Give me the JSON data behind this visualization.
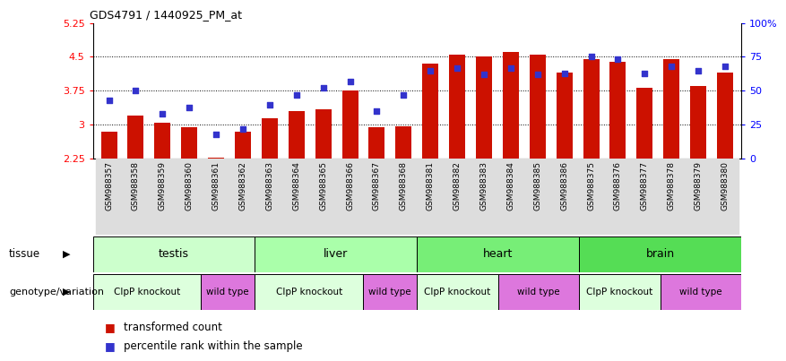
{
  "title": "GDS4791 / 1440925_PM_at",
  "samples": [
    "GSM988357",
    "GSM988358",
    "GSM988359",
    "GSM988360",
    "GSM988361",
    "GSM988362",
    "GSM988363",
    "GSM988364",
    "GSM988365",
    "GSM988366",
    "GSM988367",
    "GSM988368",
    "GSM988381",
    "GSM988382",
    "GSM988383",
    "GSM988384",
    "GSM988385",
    "GSM988386",
    "GSM988375",
    "GSM988376",
    "GSM988377",
    "GSM988378",
    "GSM988379",
    "GSM988380"
  ],
  "bar_values": [
    2.85,
    3.2,
    3.05,
    2.95,
    2.28,
    2.85,
    3.15,
    3.3,
    3.35,
    3.75,
    2.95,
    2.97,
    4.35,
    4.55,
    4.5,
    4.6,
    4.55,
    4.15,
    4.45,
    4.4,
    3.82,
    4.45,
    3.85,
    4.15
  ],
  "dot_values": [
    43,
    50,
    33,
    38,
    18,
    22,
    40,
    47,
    52,
    57,
    35,
    47,
    65,
    67,
    62,
    67,
    62,
    63,
    75,
    73,
    63,
    68,
    65,
    68
  ],
  "bar_color": "#cc1100",
  "dot_color": "#3333cc",
  "ylim_left": [
    2.25,
    5.25
  ],
  "ylim_right": [
    0,
    100
  ],
  "yticks_left": [
    2.25,
    3.0,
    3.75,
    4.5,
    5.25
  ],
  "yticks_right": [
    0,
    25,
    50,
    75,
    100
  ],
  "ytick_labels_left": [
    "2.25",
    "3",
    "3.75",
    "4.5",
    "5.25"
  ],
  "ytick_labels_right": [
    "0",
    "25",
    "50",
    "75",
    "100%"
  ],
  "grid_values": [
    3.0,
    3.75,
    4.5
  ],
  "tissues": [
    {
      "label": "testis",
      "start": 0,
      "end": 6,
      "color": "#ccffcc"
    },
    {
      "label": "liver",
      "start": 6,
      "end": 12,
      "color": "#aaffaa"
    },
    {
      "label": "heart",
      "start": 12,
      "end": 18,
      "color": "#77ee77"
    },
    {
      "label": "brain",
      "start": 18,
      "end": 24,
      "color": "#55dd55"
    }
  ],
  "genotypes": [
    {
      "label": "ClpP knockout",
      "start": 0,
      "end": 4,
      "color": "#ddffdd"
    },
    {
      "label": "wild type",
      "start": 4,
      "end": 6,
      "color": "#dd77dd"
    },
    {
      "label": "ClpP knockout",
      "start": 6,
      "end": 10,
      "color": "#ddffdd"
    },
    {
      "label": "wild type",
      "start": 10,
      "end": 12,
      "color": "#dd77dd"
    },
    {
      "label": "ClpP knockout",
      "start": 12,
      "end": 15,
      "color": "#ddffdd"
    },
    {
      "label": "wild type",
      "start": 15,
      "end": 18,
      "color": "#dd77dd"
    },
    {
      "label": "ClpP knockout",
      "start": 18,
      "end": 21,
      "color": "#ddffdd"
    },
    {
      "label": "wild type",
      "start": 21,
      "end": 24,
      "color": "#dd77dd"
    }
  ],
  "legend_items": [
    {
      "label": "transformed count",
      "color": "#cc1100"
    },
    {
      "label": "percentile rank within the sample",
      "color": "#3333cc"
    }
  ],
  "tissue_label": "tissue",
  "genotype_label": "genotype/variation",
  "xtick_bg_color": "#dddddd"
}
